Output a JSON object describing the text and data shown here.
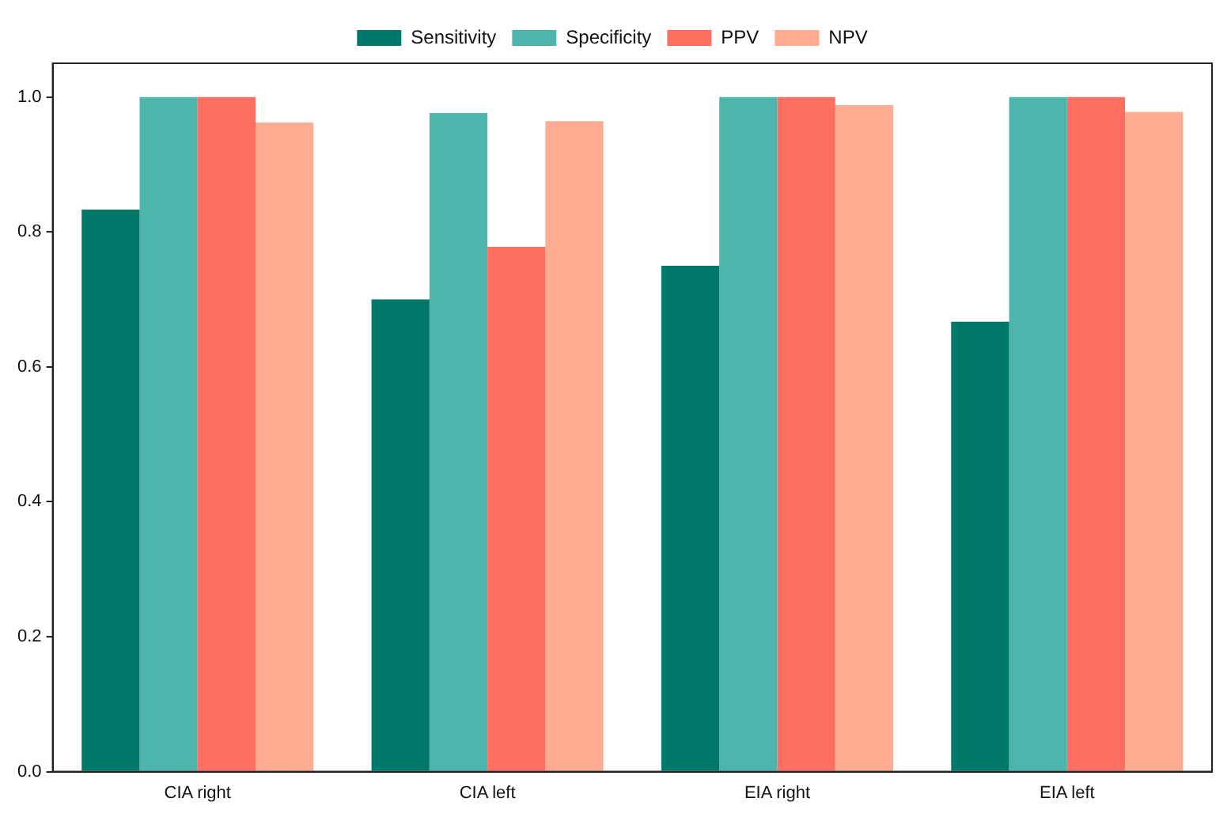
{
  "chart_data": {
    "type": "bar",
    "categories": [
      "CIA right",
      "CIA left",
      "EIA right",
      "EIA left"
    ],
    "series": [
      {
        "name": "Sensitivity",
        "color": "#00796b",
        "values": [
          0.833,
          0.7,
          0.75,
          0.667
        ]
      },
      {
        "name": "Specificity",
        "color": "#4db6ac",
        "values": [
          1.0,
          0.976,
          1.0,
          1.0
        ]
      },
      {
        "name": "PPV",
        "color": "#ff6f61",
        "values": [
          1.0,
          0.778,
          1.0,
          1.0
        ]
      },
      {
        "name": "NPV",
        "color": "#ffab91",
        "values": [
          0.962,
          0.964,
          0.988,
          0.978
        ]
      }
    ],
    "ylim": [
      0,
      1.05
    ],
    "yticks": [
      {
        "value": 0,
        "label": "0.0"
      },
      {
        "value": 0.2,
        "label": "0.2"
      },
      {
        "value": 0.4,
        "label": "0.4"
      },
      {
        "value": 0.6,
        "label": "0.6"
      },
      {
        "value": 0.8,
        "label": "0.8"
      },
      {
        "value": 1,
        "label": "1.0"
      }
    ],
    "grid": false,
    "legend": "top"
  }
}
